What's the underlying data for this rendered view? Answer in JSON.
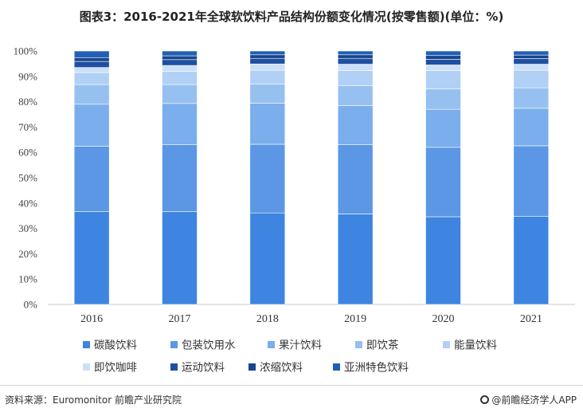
{
  "title": "图表3：2016-2021年全球软饮料产品结构份额变化情况(按零售额)(单位：%)",
  "footer": {
    "source": "资料来源：Euromonitor 前瞻产业研究院",
    "brand": "@前瞻经济学人APP"
  },
  "colors": {
    "碳酸饮料": "#3d85e0",
    "包装饮用水": "#5b97e4",
    "果汁饮料": "#7aaeec",
    "即饮茶": "#96c0f0",
    "能量饮料": "#b0d0f5",
    "即饮咖啡": "#cbe0f8",
    "运动饮料": "#1f4fa0",
    "浓缩饮料": "#17458f",
    "亚洲特色饮料": "#2160b5"
  },
  "chart_data": {
    "type": "bar",
    "stacked": true,
    "categories": [
      "2016",
      "2017",
      "2018",
      "2019",
      "2020",
      "2021"
    ],
    "ylim": [
      0,
      100
    ],
    "yticks": [
      "0%",
      "10%",
      "20%",
      "30%",
      "40%",
      "50%",
      "60%",
      "70%",
      "80%",
      "90%",
      "100%"
    ],
    "legend_position": "bottom",
    "series": [
      {
        "name": "碳酸饮料",
        "values": [
          36.6,
          36.6,
          36.1,
          35.7,
          34.6,
          34.7
        ]
      },
      {
        "name": "包装饮用水",
        "values": [
          25.8,
          26.4,
          27.1,
          27.4,
          27.4,
          27.9
        ]
      },
      {
        "name": "果汁饮料",
        "values": [
          16.6,
          16.3,
          16.2,
          15.4,
          15.0,
          14.8
        ]
      },
      {
        "name": "即饮茶",
        "values": [
          7.8,
          7.5,
          7.5,
          7.8,
          8.1,
          8.1
        ]
      },
      {
        "name": "能量饮料",
        "values": [
          4.7,
          5.2,
          5.5,
          6.0,
          7.2,
          6.9
        ]
      },
      {
        "name": "即饮咖啡",
        "values": [
          2.0,
          2.3,
          2.5,
          2.5,
          2.2,
          2.4
        ]
      },
      {
        "name": "运动饮料",
        "values": [
          2.4,
          2.3,
          2.2,
          2.3,
          2.2,
          2.2
        ]
      },
      {
        "name": "浓缩饮料",
        "values": [
          1.5,
          1.5,
          1.4,
          1.4,
          1.5,
          1.4
        ]
      },
      {
        "name": "亚洲特色饮料",
        "values": [
          2.6,
          1.9,
          1.5,
          1.5,
          1.8,
          1.6
        ]
      }
    ]
  }
}
